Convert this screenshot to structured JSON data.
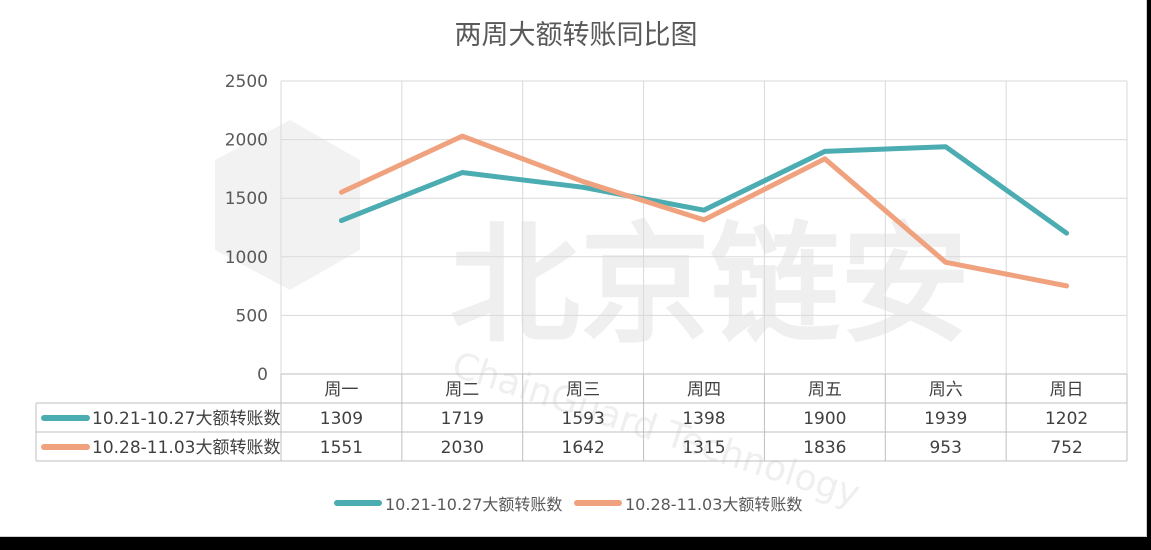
{
  "chart_data": {
    "type": "line",
    "title": "两周大额转账同比图",
    "categories": [
      "周一",
      "周二",
      "周三",
      "周四",
      "周五",
      "周六",
      "周日"
    ],
    "ylim": [
      0,
      2500
    ],
    "yticks": [
      0,
      500,
      1000,
      1500,
      2000,
      2500
    ],
    "grid": true,
    "legend_position": "bottom",
    "data_table": true,
    "series": [
      {
        "name": "10.21-10.27大额转账数",
        "color": "#4bacb1",
        "values": [
          1309,
          1719,
          1593,
          1398,
          1900,
          1939,
          1202
        ]
      },
      {
        "name": "10.28-11.03大额转账数",
        "color": "#f0a27f",
        "values": [
          1551,
          2030,
          1642,
          1315,
          1836,
          953,
          752
        ]
      }
    ]
  },
  "watermark": {
    "text": "北京链安",
    "subtext": "ChainGuard Technology"
  }
}
